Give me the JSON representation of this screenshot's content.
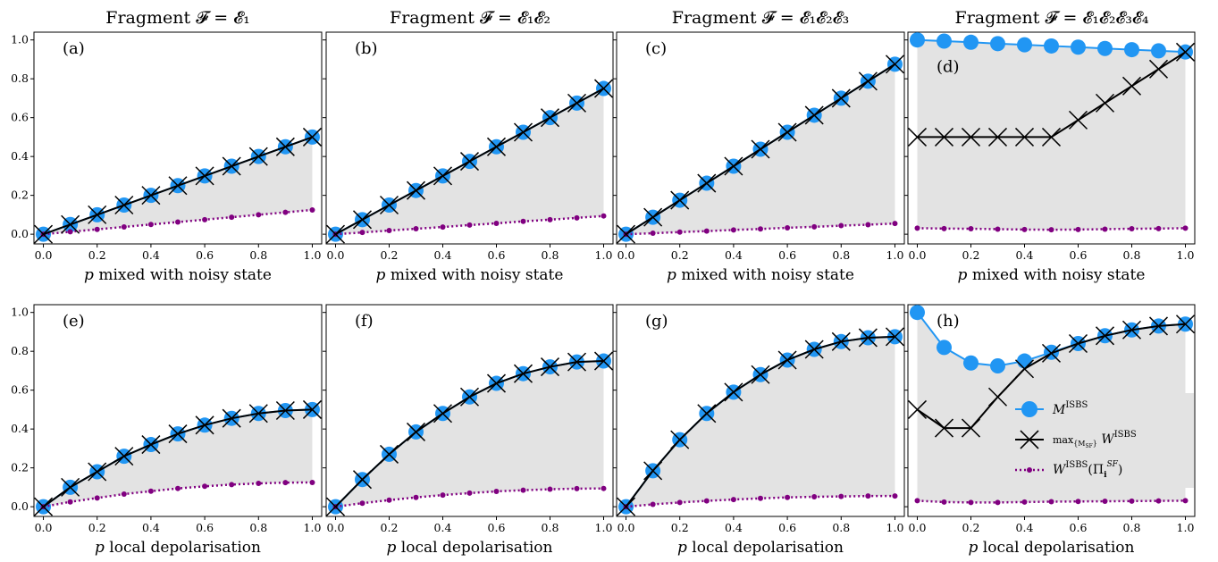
{
  "column_titles": [
    "Fragment 𝓕 = 𝓔₁",
    "Fragment 𝓕 = 𝓔₁𝓔₂",
    "Fragment 𝓕 = 𝓔₁𝓔₂𝓔₃",
    "Fragment 𝓕 = 𝓔₁𝓔₂𝓔₃𝓔₄"
  ],
  "legend": {
    "m_label": "M^ISBS",
    "w_max_label": "max_{M_SF} W^ISBS",
    "w_proj_label": "W^ISBS(Π_i^SF)"
  },
  "colors": {
    "m_series": "#2196f3",
    "w_max_series": "#000000",
    "w_proj_series": "#800080",
    "shade": "#e3e3e3"
  },
  "chart_data": [
    {
      "type": "line",
      "panel": "(a)",
      "xlabel": "p mixed with noisy state",
      "x": [
        0.0,
        0.1,
        0.2,
        0.3,
        0.4,
        0.5,
        0.6,
        0.7,
        0.8,
        0.9,
        1.0
      ],
      "xlim": [
        0,
        1
      ],
      "ylim": [
        0,
        1
      ],
      "xticks": [
        "0.0",
        "0.2",
        "0.4",
        "0.6",
        "0.8",
        "1.0"
      ],
      "yticks": [
        "0.0",
        "0.2",
        "0.4",
        "0.6",
        "0.8",
        "1.0"
      ],
      "series": [
        {
          "name": "M^ISBS",
          "values": [
            0.0,
            0.05,
            0.1,
            0.15,
            0.2,
            0.25,
            0.3,
            0.35,
            0.4,
            0.45,
            0.5
          ]
        },
        {
          "name": "max_{M_SF} W^ISBS",
          "values": [
            0.0,
            0.05,
            0.1,
            0.15,
            0.2,
            0.25,
            0.3,
            0.35,
            0.4,
            0.45,
            0.5
          ]
        },
        {
          "name": "W^ISBS(Π_i^SF)",
          "values": [
            0.0,
            0.0125,
            0.025,
            0.0375,
            0.05,
            0.0625,
            0.075,
            0.0875,
            0.1,
            0.1125,
            0.125
          ]
        }
      ]
    },
    {
      "type": "line",
      "panel": "(b)",
      "xlabel": "p mixed with noisy state",
      "x": [
        0.0,
        0.1,
        0.2,
        0.3,
        0.4,
        0.5,
        0.6,
        0.7,
        0.8,
        0.9,
        1.0
      ],
      "xlim": [
        0,
        1
      ],
      "ylim": [
        0,
        1
      ],
      "xticks": [
        "0.0",
        "0.2",
        "0.4",
        "0.6",
        "0.8",
        "1.0"
      ],
      "yticks": [],
      "series": [
        {
          "name": "M^ISBS",
          "values": [
            0.0,
            0.075,
            0.15,
            0.225,
            0.3,
            0.375,
            0.45,
            0.525,
            0.6,
            0.675,
            0.75
          ]
        },
        {
          "name": "max_{M_SF} W^ISBS",
          "values": [
            0.0,
            0.075,
            0.15,
            0.225,
            0.3,
            0.375,
            0.45,
            0.525,
            0.6,
            0.675,
            0.75
          ]
        },
        {
          "name": "W^ISBS(Π_i^SF)",
          "values": [
            0.0,
            0.009,
            0.019,
            0.028,
            0.037,
            0.047,
            0.056,
            0.066,
            0.075,
            0.084,
            0.094
          ]
        }
      ]
    },
    {
      "type": "line",
      "panel": "(c)",
      "xlabel": "p mixed with noisy state",
      "x": [
        0.0,
        0.1,
        0.2,
        0.3,
        0.4,
        0.5,
        0.6,
        0.7,
        0.8,
        0.9,
        1.0
      ],
      "xlim": [
        0,
        1
      ],
      "ylim": [
        0,
        1
      ],
      "xticks": [
        "0.0",
        "0.2",
        "0.4",
        "0.6",
        "0.8",
        "1.0"
      ],
      "yticks": [],
      "series": [
        {
          "name": "M^ISBS",
          "values": [
            0.0,
            0.0875,
            0.175,
            0.2625,
            0.35,
            0.4375,
            0.525,
            0.6125,
            0.7,
            0.7875,
            0.875
          ]
        },
        {
          "name": "max_{M_SF} W^ISBS",
          "values": [
            0.0,
            0.0875,
            0.175,
            0.2625,
            0.35,
            0.4375,
            0.525,
            0.6125,
            0.7,
            0.7875,
            0.875
          ]
        },
        {
          "name": "W^ISBS(Π_i^SF)",
          "values": [
            0.0,
            0.005,
            0.011,
            0.016,
            0.022,
            0.027,
            0.033,
            0.038,
            0.044,
            0.049,
            0.055
          ]
        }
      ]
    },
    {
      "type": "line",
      "panel": "(d)",
      "xlabel": "p mixed with noisy state",
      "x": [
        0.0,
        0.1,
        0.2,
        0.3,
        0.4,
        0.5,
        0.6,
        0.7,
        0.8,
        0.9,
        1.0
      ],
      "xlim": [
        0,
        1
      ],
      "ylim": [
        0,
        1
      ],
      "xticks": [
        "0.0",
        "0.2",
        "0.4",
        "0.6",
        "0.8",
        "1.0"
      ],
      "yticks": [],
      "series": [
        {
          "name": "M^ISBS",
          "values": [
            1.0,
            0.994,
            0.988,
            0.981,
            0.975,
            0.969,
            0.963,
            0.956,
            0.95,
            0.944,
            0.938
          ]
        },
        {
          "name": "max_{M_SF} W^ISBS",
          "values": [
            0.5,
            0.5,
            0.5,
            0.5,
            0.5,
            0.5,
            0.5875,
            0.675,
            0.7625,
            0.85,
            0.9375
          ]
        },
        {
          "name": "W^ISBS(Π_i^SF)",
          "values": [
            0.031,
            0.029,
            0.028,
            0.026,
            0.024,
            0.023,
            0.024,
            0.026,
            0.028,
            0.029,
            0.031
          ]
        }
      ]
    },
    {
      "type": "line",
      "panel": "(e)",
      "xlabel": "p local depolarisation",
      "x": [
        0.0,
        0.1,
        0.2,
        0.3,
        0.4,
        0.5,
        0.6,
        0.7,
        0.8,
        0.9,
        1.0
      ],
      "xlim": [
        0,
        1
      ],
      "ylim": [
        0,
        1
      ],
      "xticks": [
        "0.0",
        "0.2",
        "0.4",
        "0.6",
        "0.8",
        "1.0"
      ],
      "yticks": [
        "0.0",
        "0.2",
        "0.4",
        "0.6",
        "0.8",
        "1.0"
      ],
      "series": [
        {
          "name": "M^ISBS",
          "values": [
            0.0,
            0.1,
            0.18,
            0.26,
            0.32,
            0.375,
            0.42,
            0.455,
            0.48,
            0.495,
            0.5
          ]
        },
        {
          "name": "max_{M_SF} W^ISBS",
          "values": [
            0.0,
            0.1,
            0.18,
            0.26,
            0.32,
            0.375,
            0.42,
            0.455,
            0.48,
            0.495,
            0.5
          ]
        },
        {
          "name": "W^ISBS(Π_i^SF)",
          "values": [
            0.0,
            0.025,
            0.045,
            0.065,
            0.08,
            0.094,
            0.105,
            0.114,
            0.12,
            0.124,
            0.125
          ]
        }
      ]
    },
    {
      "type": "line",
      "panel": "(f)",
      "xlabel": "p local depolarisation",
      "x": [
        0.0,
        0.1,
        0.2,
        0.3,
        0.4,
        0.5,
        0.6,
        0.7,
        0.8,
        0.9,
        1.0
      ],
      "xlim": [
        0,
        1
      ],
      "ylim": [
        0,
        1
      ],
      "xticks": [
        "0.0",
        "0.2",
        "0.4",
        "0.6",
        "0.8",
        "1.0"
      ],
      "yticks": [],
      "series": [
        {
          "name": "M^ISBS",
          "values": [
            0.0,
            0.14,
            0.27,
            0.385,
            0.48,
            0.565,
            0.635,
            0.685,
            0.72,
            0.745,
            0.75
          ]
        },
        {
          "name": "max_{M_SF} W^ISBS",
          "values": [
            0.0,
            0.14,
            0.27,
            0.385,
            0.48,
            0.565,
            0.635,
            0.685,
            0.72,
            0.745,
            0.75
          ]
        },
        {
          "name": "W^ISBS(Π_i^SF)",
          "values": [
            0.0,
            0.018,
            0.034,
            0.048,
            0.06,
            0.07,
            0.079,
            0.085,
            0.09,
            0.093,
            0.094
          ]
        }
      ]
    },
    {
      "type": "line",
      "panel": "(g)",
      "xlabel": "p local depolarisation",
      "x": [
        0.0,
        0.1,
        0.2,
        0.3,
        0.4,
        0.5,
        0.6,
        0.7,
        0.8,
        0.9,
        1.0
      ],
      "xlim": [
        0,
        1
      ],
      "ylim": [
        0,
        1
      ],
      "xticks": [
        "0.0",
        "0.2",
        "0.4",
        "0.6",
        "0.8",
        "1.0"
      ],
      "yticks": [],
      "series": [
        {
          "name": "M^ISBS",
          "values": [
            0.0,
            0.185,
            0.345,
            0.48,
            0.59,
            0.68,
            0.755,
            0.81,
            0.85,
            0.87,
            0.875
          ]
        },
        {
          "name": "max_{M_SF} W^ISBS",
          "values": [
            0.0,
            0.185,
            0.345,
            0.48,
            0.59,
            0.68,
            0.755,
            0.81,
            0.85,
            0.87,
            0.875
          ]
        },
        {
          "name": "W^ISBS(Π_i^SF)",
          "values": [
            0.0,
            0.012,
            0.022,
            0.03,
            0.037,
            0.043,
            0.048,
            0.051,
            0.053,
            0.055,
            0.055
          ]
        }
      ]
    },
    {
      "type": "line",
      "panel": "(h)",
      "xlabel": "p local depolarisation",
      "x": [
        0.0,
        0.1,
        0.2,
        0.3,
        0.4,
        0.5,
        0.6,
        0.7,
        0.8,
        0.9,
        1.0
      ],
      "xlim": [
        0,
        1
      ],
      "ylim": [
        0,
        1
      ],
      "xticks": [
        "0.0",
        "0.2",
        "0.4",
        "0.6",
        "0.8",
        "1.0"
      ],
      "yticks": [],
      "series": [
        {
          "name": "M^ISBS",
          "values": [
            1.0,
            0.82,
            0.74,
            0.725,
            0.75,
            0.795,
            0.84,
            0.88,
            0.91,
            0.93,
            0.94
          ]
        },
        {
          "name": "max_{M_SF} W^ISBS",
          "values": [
            0.5,
            0.405,
            0.405,
            0.565,
            0.71,
            0.79,
            0.84,
            0.88,
            0.91,
            0.93,
            0.94
          ]
        },
        {
          "name": "W^ISBS(Π_i^SF)",
          "values": [
            0.031,
            0.024,
            0.022,
            0.022,
            0.024,
            0.026,
            0.027,
            0.028,
            0.029,
            0.03,
            0.031
          ]
        }
      ]
    }
  ]
}
